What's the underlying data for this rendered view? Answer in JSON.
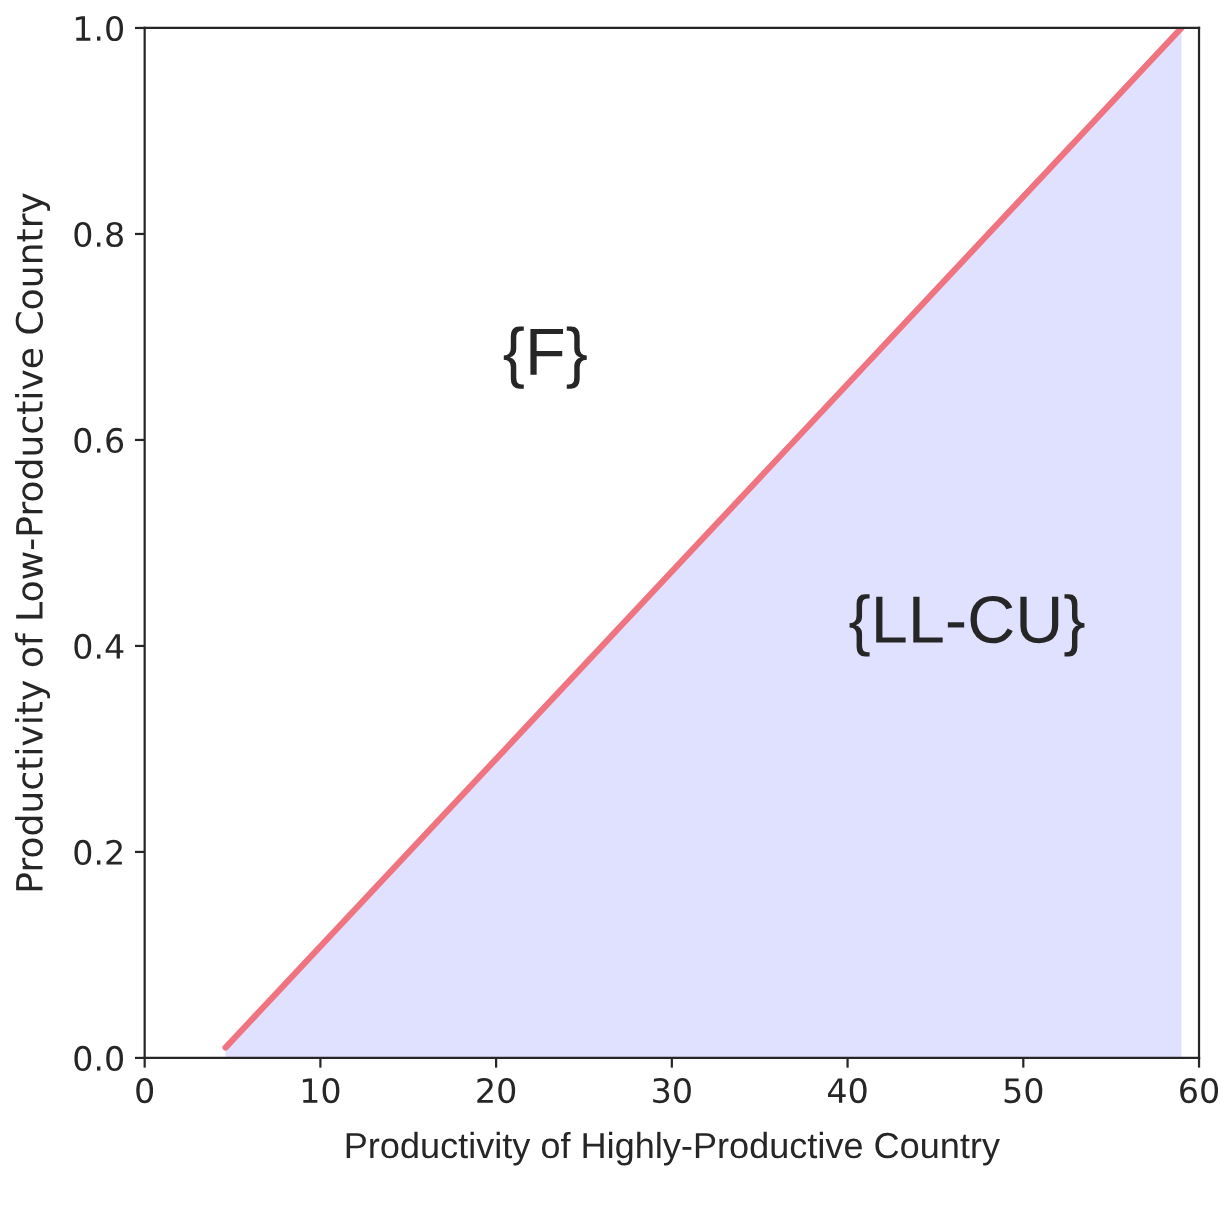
{
  "chart_data": {
    "type": "area",
    "color": "#e0e0ff",
    "xlabel": "Productivity of Highly-Productive Country",
    "ylabel": "Productivity of Low-Productive Country",
    "series": [
      {
        "color": "#f07380",
        "x": [
          4.6,
          59
        ],
        "values": [
          0.01,
          1.0
        ]
      }
    ],
    "annotations": [
      "{F}",
      "{LL-CU}"
    ],
    "xlim": [
      0,
      60
    ],
    "ylim": [
      0,
      1.0
    ],
    "xticks": [
      0,
      10,
      20,
      30,
      40,
      50,
      60
    ],
    "yticks": [
      {
        "value": 0,
        "label": "0.0"
      },
      {
        "value": 0.2,
        "label": "0.2"
      },
      {
        "value": 0.4,
        "label": "0.4"
      },
      {
        "value": 0.6,
        "label": "0.6"
      },
      {
        "value": 0.8,
        "label": "0.8"
      },
      {
        "value": 1.0,
        "label": "1.0"
      }
    ],
    "grid": false,
    "legend": false
  }
}
